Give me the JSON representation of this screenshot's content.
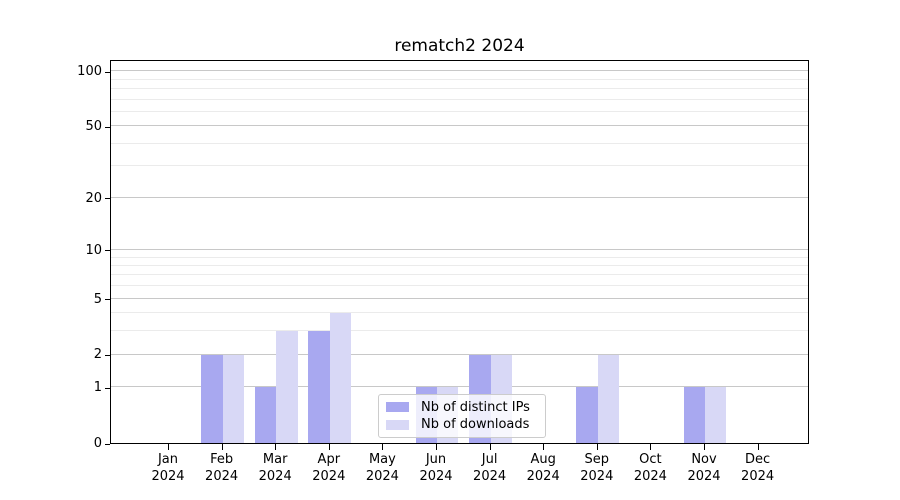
{
  "title": "rematch2 2024",
  "chart_data": {
    "type": "bar",
    "title": "rematch2 2024",
    "categories": [
      "Jan",
      "Feb",
      "Mar",
      "Apr",
      "May",
      "Jun",
      "Jul",
      "Aug",
      "Sep",
      "Oct",
      "Nov",
      "Dec"
    ],
    "category_year": "2024",
    "series": [
      {
        "name": "Nb of distinct IPs",
        "color": "#a8a8f0",
        "values": [
          0,
          2,
          1,
          3,
          0,
          1,
          2,
          0,
          1,
          0,
          1,
          0
        ]
      },
      {
        "name": "Nb of downloads",
        "color": "#d8d8f6",
        "values": [
          0,
          2,
          3,
          4,
          0,
          1,
          2,
          0,
          2,
          0,
          1,
          0
        ]
      }
    ],
    "xlabel": "",
    "ylabel": "",
    "y_scale": "log1p",
    "y_major_ticks": [
      0,
      1,
      2,
      5,
      10,
      20,
      50,
      100
    ],
    "y_minor_gridlines": [
      3,
      4,
      6,
      7,
      8,
      9,
      30,
      40,
      60,
      70,
      80,
      90
    ],
    "ylim": [
      0,
      116
    ],
    "grid": "horizontal",
    "legend_position": "lower-center",
    "colors": {
      "major_grid": "#c8c8c8",
      "minor_grid": "#ebebeb",
      "spine": "#000000",
      "background": "#ffffff"
    }
  }
}
